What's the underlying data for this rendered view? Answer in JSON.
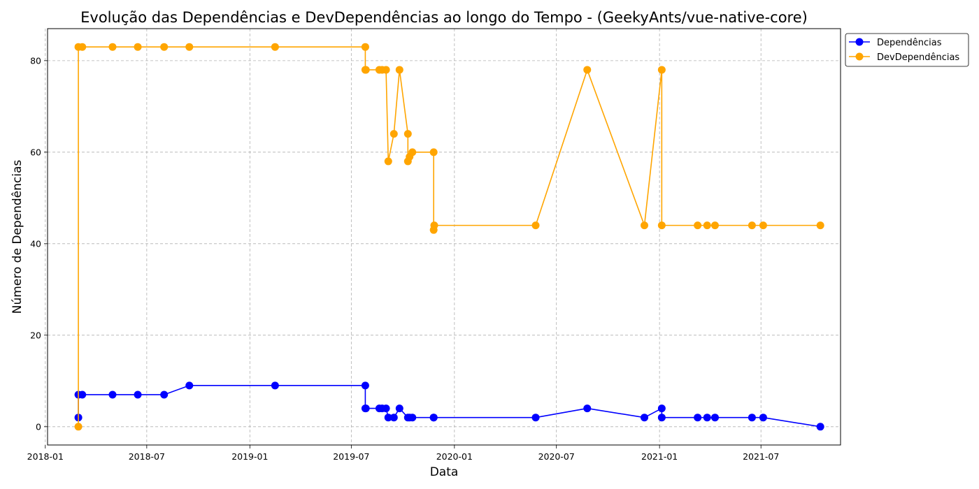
{
  "chart_data": {
    "type": "line",
    "title": "Evolução das Dependências e DevDependências ao longo do Tempo - (GeekyAnts/vue-native-core)",
    "xlabel": "Data",
    "ylabel": "Número de Dependências",
    "xlim": [
      "2018-01-05",
      "2021-11-20"
    ],
    "ylim": [
      -4,
      87
    ],
    "x_ticks": [
      "2018-01",
      "2018-07",
      "2019-01",
      "2019-07",
      "2020-01",
      "2020-07",
      "2021-01",
      "2021-07"
    ],
    "y_ticks": [
      0,
      20,
      40,
      60,
      80
    ],
    "grid": true,
    "legend_position": "outside-top-right",
    "series": [
      {
        "name": "Dependências",
        "color": "#0000ff",
        "points": [
          [
            "2018-03-01",
            2
          ],
          [
            "2018-03-01",
            7
          ],
          [
            "2018-03-08",
            7
          ],
          [
            "2018-05-01",
            7
          ],
          [
            "2018-06-15",
            7
          ],
          [
            "2018-08-01",
            7
          ],
          [
            "2018-09-15",
            9
          ],
          [
            "2019-02-15",
            9
          ],
          [
            "2019-07-26",
            9
          ],
          [
            "2019-07-26",
            4
          ],
          [
            "2019-07-27",
            4
          ],
          [
            "2019-08-20",
            4
          ],
          [
            "2019-08-25",
            4
          ],
          [
            "2019-09-01",
            4
          ],
          [
            "2019-09-05",
            2
          ],
          [
            "2019-09-15",
            2
          ],
          [
            "2019-09-25",
            4
          ],
          [
            "2019-10-10",
            2
          ],
          [
            "2019-10-13",
            2
          ],
          [
            "2019-10-18",
            2
          ],
          [
            "2019-11-25",
            2
          ],
          [
            "2019-11-25",
            2
          ],
          [
            "2020-05-25",
            2
          ],
          [
            "2020-08-25",
            4
          ],
          [
            "2020-12-05",
            2
          ],
          [
            "2021-01-05",
            4
          ],
          [
            "2021-01-05",
            2
          ],
          [
            "2021-03-10",
            2
          ],
          [
            "2021-03-27",
            2
          ],
          [
            "2021-04-10",
            2
          ],
          [
            "2021-06-15",
            2
          ],
          [
            "2021-07-05",
            2
          ],
          [
            "2021-10-15",
            0
          ]
        ]
      },
      {
        "name": "DevDependências",
        "color": "#ffa500",
        "points": [
          [
            "2018-03-01",
            0
          ],
          [
            "2018-03-01",
            83
          ],
          [
            "2018-03-08",
            83
          ],
          [
            "2018-05-01",
            83
          ],
          [
            "2018-06-15",
            83
          ],
          [
            "2018-08-01",
            83
          ],
          [
            "2018-09-15",
            83
          ],
          [
            "2019-02-15",
            83
          ],
          [
            "2019-07-26",
            83
          ],
          [
            "2019-07-26",
            78
          ],
          [
            "2019-07-27",
            78
          ],
          [
            "2019-08-20",
            78
          ],
          [
            "2019-08-25",
            78
          ],
          [
            "2019-09-01",
            78
          ],
          [
            "2019-09-05",
            58
          ],
          [
            "2019-09-15",
            64
          ],
          [
            "2019-09-25",
            78
          ],
          [
            "2019-10-10",
            64
          ],
          [
            "2019-10-10",
            58
          ],
          [
            "2019-10-13",
            59
          ],
          [
            "2019-10-18",
            60
          ],
          [
            "2019-11-25",
            60
          ],
          [
            "2019-11-25",
            43
          ],
          [
            "2019-11-26",
            44
          ],
          [
            "2020-05-25",
            44
          ],
          [
            "2020-08-25",
            78
          ],
          [
            "2020-12-05",
            44
          ],
          [
            "2021-01-05",
            78
          ],
          [
            "2021-01-05",
            44
          ],
          [
            "2021-03-10",
            44
          ],
          [
            "2021-03-27",
            44
          ],
          [
            "2021-04-10",
            44
          ],
          [
            "2021-06-15",
            44
          ],
          [
            "2021-07-05",
            44
          ],
          [
            "2021-10-15",
            44
          ]
        ]
      }
    ]
  }
}
